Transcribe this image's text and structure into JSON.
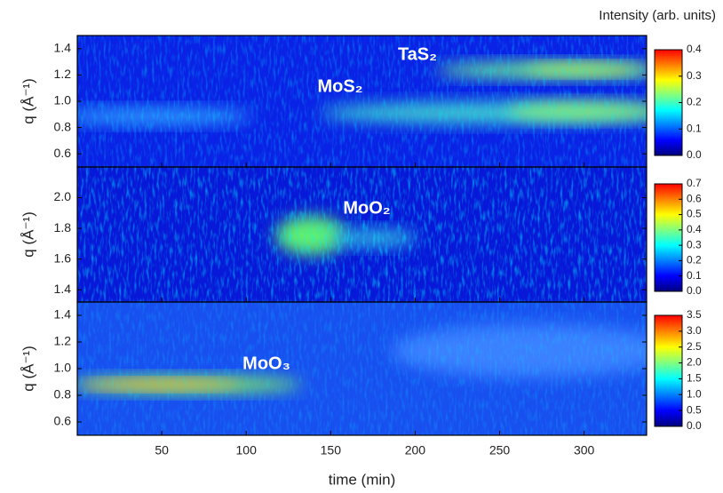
{
  "chart_data": [
    {
      "type": "heatmap",
      "ylabel": "q (Å⁻¹)",
      "ylim": [
        0.5,
        1.5
      ],
      "yticks": [
        0.6,
        0.8,
        {
          "value": 1.0,
          "label": "1.0"
        },
        1.2,
        1.4
      ],
      "colorbar_title": "Intensity (arb. units)",
      "colorbar": {
        "lim": [
          0,
          0.4
        ],
        "ticks": [
          {
            "value": 0,
            "label": "0.0"
          },
          0.1,
          0.2,
          0.3,
          0.4
        ]
      },
      "annotations": [
        {
          "text": "TaS₂"
        },
        {
          "text": "MoS₂"
        }
      ],
      "colormap": [
        "#00007f",
        "#0000ff",
        "#0080ff",
        "#00ffff",
        "#80ff80",
        "#ffff00",
        "#ff8000",
        "#ff0000"
      ]
    },
    {
      "type": "heatmap",
      "ylabel": "q (Å⁻¹)",
      "ylim": [
        1.32,
        2.2
      ],
      "yticks": [
        1.4,
        1.6,
        1.8,
        {
          "value": 2.0,
          "label": "2.0"
        }
      ],
      "colorbar": {
        "lim": [
          0,
          0.7
        ],
        "ticks": [
          {
            "value": 0,
            "label": "0.0"
          },
          0.1,
          0.2,
          0.3,
          0.4,
          0.5,
          0.6,
          0.7
        ]
      },
      "annotations": [
        {
          "text": "MoO₂"
        }
      ],
      "colormap": [
        "#00007f",
        "#0000ff",
        "#0080ff",
        "#00ffff",
        "#80ff80",
        "#ffff00",
        "#ff8000",
        "#ff0000"
      ]
    },
    {
      "type": "heatmap",
      "ylabel": "q (Å⁻¹)",
      "ylim": [
        0.5,
        1.5
      ],
      "yticks": [
        0.6,
        0.8,
        {
          "value": 1.0,
          "label": "1.0"
        },
        1.2,
        1.4
      ],
      "xlabel": "time (min)",
      "xlim": [
        0,
        337
      ],
      "xticks": [
        50,
        100,
        150,
        200,
        250,
        300
      ],
      "colorbar": {
        "lim": [
          0,
          3.5
        ],
        "ticks": [
          {
            "value": 0,
            "label": "0.0"
          },
          0.5,
          {
            "value": 1,
            "label": "1.0"
          },
          1.5,
          {
            "value": 2,
            "label": "2.0"
          },
          2.5,
          {
            "value": 3,
            "label": "3.0"
          },
          3.5
        ]
      },
      "annotations": [
        {
          "text": "MoO₃"
        }
      ],
      "colormap": [
        "#00007f",
        "#0000ff",
        "#0080ff",
        "#00ffff",
        "#80ff80",
        "#ffff00",
        "#ff8000",
        "#ff0000"
      ]
    }
  ]
}
